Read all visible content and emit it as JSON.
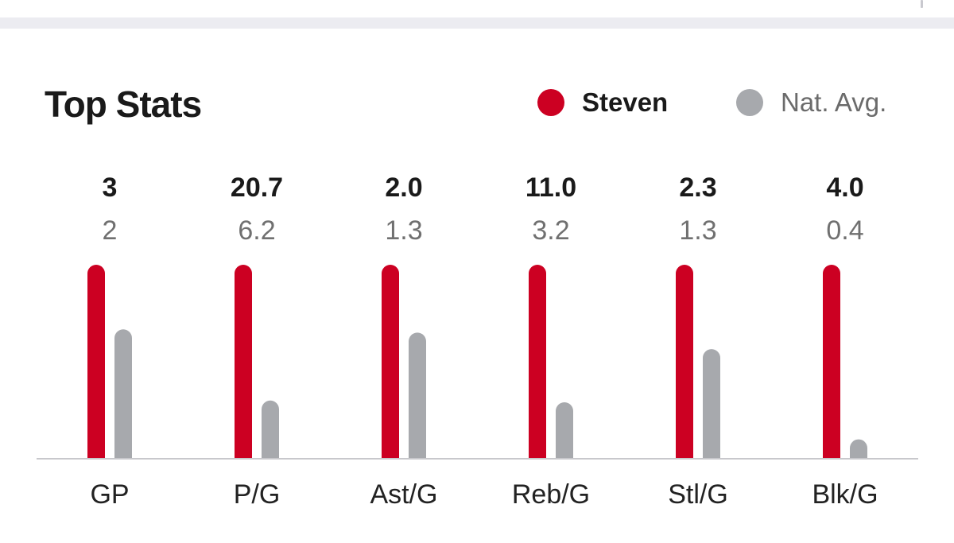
{
  "title": "Top Stats",
  "legend": {
    "steven": {
      "label": "Steven",
      "color": "#cc0022"
    },
    "nat_avg": {
      "label": "Nat. Avg.",
      "color": "#a7a9ad"
    }
  },
  "chart_data": {
    "type": "bar",
    "title": "Top Stats",
    "categories": [
      "GP",
      "P/G",
      "Ast/G",
      "Reb/G",
      "Stl/G",
      "Blk/G"
    ],
    "series": [
      {
        "name": "Steven",
        "values": [
          3,
          20.7,
          2.0,
          11.0,
          2.3,
          4.0
        ],
        "labels": [
          "3",
          "20.7",
          "2.0",
          "11.0",
          "2.3",
          "4.0"
        ],
        "relative_heights": [
          1,
          1,
          1,
          1,
          1,
          1
        ]
      },
      {
        "name": "Nat. Avg.",
        "values": [
          2,
          6.2,
          1.3,
          3.2,
          1.3,
          0.4
        ],
        "labels": [
          "2",
          "6.2",
          "1.3",
          "3.2",
          "1.3",
          "0.4"
        ],
        "relative_heights": [
          0.667,
          0.3,
          0.65,
          0.291,
          0.565,
          0.1
        ]
      }
    ],
    "scaling": "each category normalized to the larger of the two values",
    "xlabel": "",
    "ylabel": "",
    "grid": false,
    "legend_position": "top-right"
  }
}
